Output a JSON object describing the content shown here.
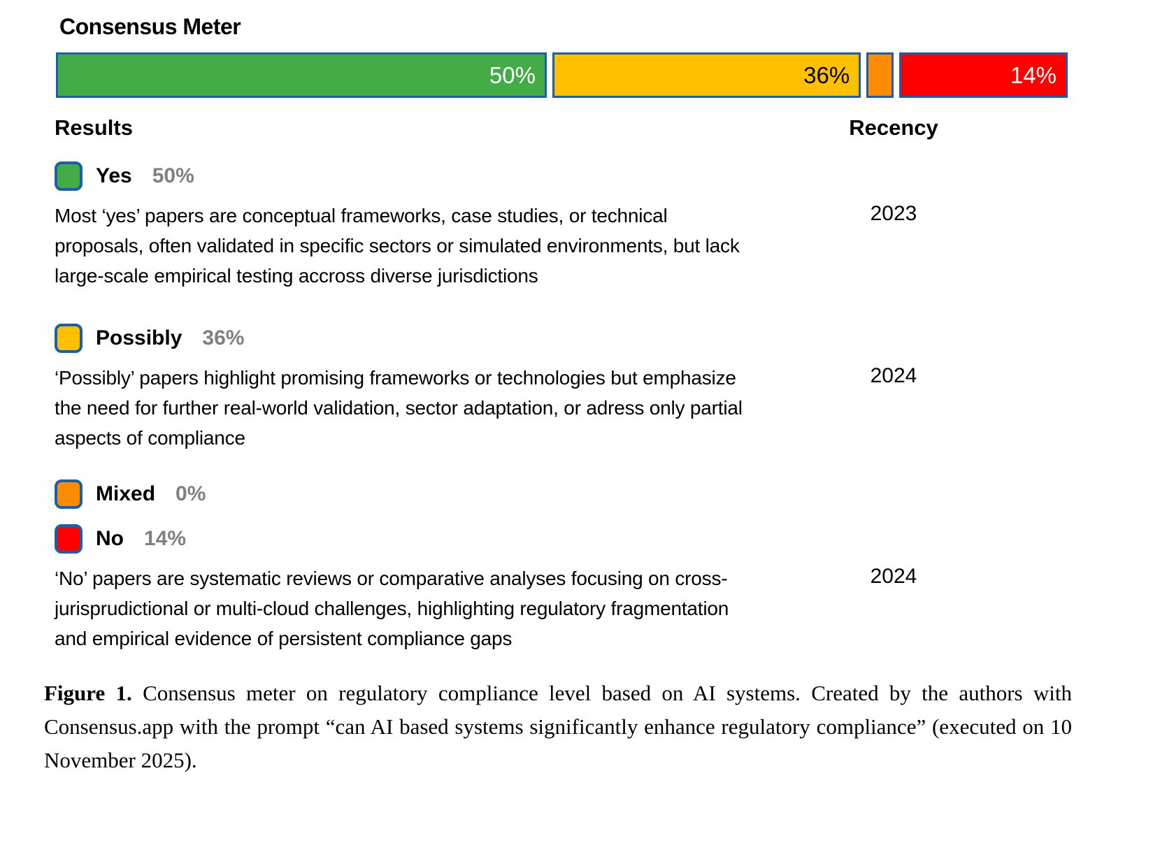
{
  "meter": {
    "title": "Consensus Meter",
    "border_color": "#1b5fa8",
    "segments": [
      {
        "name": "Yes",
        "pct_label": "50%",
        "value": 50,
        "color": "#43ac46",
        "text_color": "#ffffff",
        "width_ratio": 723
      },
      {
        "name": "Possibly",
        "pct_label": "36%",
        "value": 36,
        "color": "#ffc000",
        "text_color": "#000000",
        "width_ratio": 447
      },
      {
        "name": "Mixed",
        "pct_label": "",
        "value": 0,
        "color": "#ff8c00",
        "text_color": "#ffffff",
        "width_ratio": 21
      },
      {
        "name": "No",
        "pct_label": "14%",
        "value": 14,
        "color": "#fe0000",
        "text_color": "#ffffff",
        "width_ratio": 235
      }
    ]
  },
  "headers": {
    "results": "Results",
    "recency": "Recency"
  },
  "rows": [
    {
      "label": "Yes",
      "pct": "50%",
      "color": "#43ac46",
      "description": "Most ‘yes’ papers are conceptual frameworks, case studies, or technical proposals, often validated in specific sectors or simulated environments, but lack large-scale empirical testing accross diverse jurisdictions",
      "recency": "2023"
    },
    {
      "label": "Possibly",
      "pct": "36%",
      "color": "#ffc000",
      "description": "‘Possibly’ papers highlight promising frameworks or technologies but emphasize the need for further real-world validation, sector adaptation, or adress only partial aspects of compliance",
      "recency": "2024"
    },
    {
      "label": "Mixed",
      "pct": "0%",
      "color": "#ff8c00",
      "description": "",
      "recency": ""
    },
    {
      "label": "No",
      "pct": "14%",
      "color": "#fe0000",
      "description": "‘No’ papers are systematic reviews or comparative analyses focusing on cross-jurisprudictional or multi-cloud challenges, highlighting regulatory fragmentation and empirical evidence of persistent compliance gaps",
      "recency": "2024"
    }
  ],
  "caption": {
    "label": "Figure 1.",
    "text": "Consensus meter on regulatory compliance level based on AI systems. Created by the authors with Consensus.app with the prompt “can AI based systems significantly enhance regulatory compliance” (executed on 10 November 2025)."
  },
  "chart_data": {
    "type": "bar",
    "orientation": "horizontal-stacked",
    "title": "Consensus Meter",
    "categories": [
      "Yes",
      "Possibly",
      "Mixed",
      "No"
    ],
    "values": [
      50,
      36,
      0,
      14
    ],
    "unit": "%",
    "colors": [
      "#43ac46",
      "#ffc000",
      "#ff8c00",
      "#fe0000"
    ],
    "segment_labels": [
      "50%",
      "36%",
      "",
      "14%"
    ],
    "legend_position": "below-left",
    "columns": [
      "Results",
      "Recency"
    ],
    "recency": [
      {
        "category": "Yes",
        "year": "2023"
      },
      {
        "category": "Possibly",
        "year": "2024"
      },
      {
        "category": "Mixed",
        "year": ""
      },
      {
        "category": "No",
        "year": "2024"
      }
    ]
  }
}
